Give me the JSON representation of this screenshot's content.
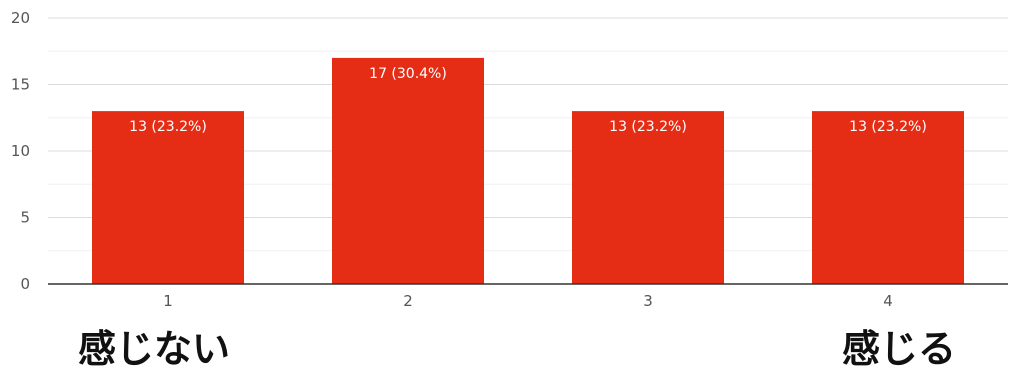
{
  "chart_data": {
    "type": "bar",
    "title": "",
    "categories": [
      "1",
      "2",
      "3",
      "4"
    ],
    "values": [
      13,
      17,
      13,
      13
    ],
    "value_labels": [
      "13 (23.2%)",
      "17 (30.4%)",
      "13 (23.2%)",
      "13 (23.2%)"
    ],
    "y_ticks": [
      "0",
      "5",
      "10",
      "15",
      "20"
    ],
    "ylim": [
      0,
      20
    ],
    "grid": true,
    "bar_color": "#e52d16",
    "xlabel": "",
    "ylabel": ""
  },
  "scale_labels": {
    "low": "感じない",
    "high": "感じる"
  }
}
